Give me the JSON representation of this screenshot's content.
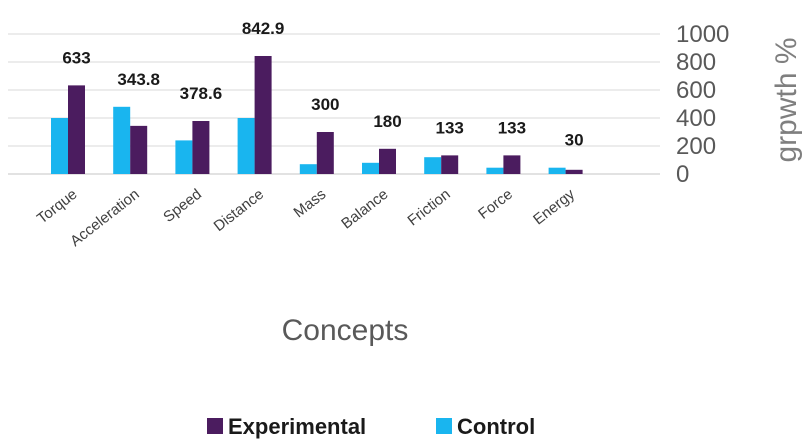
{
  "chart_data": {
    "type": "bar",
    "categories": [
      "Torque",
      "Acceleration",
      "Speed",
      "Distance",
      "Mass",
      "Balance",
      "Friction",
      "Force",
      "Energy"
    ],
    "series": [
      {
        "name": "Control",
        "color": "#19b5ef",
        "values": [
          400,
          480,
          240,
          400,
          70,
          80,
          120,
          45,
          45
        ]
      },
      {
        "name": "Experimental",
        "color": "#4b1c5f",
        "values": [
          633,
          343.8,
          378.6,
          842.9,
          300,
          180,
          133,
          133,
          30
        ]
      }
    ],
    "data_labels": [
      "633",
      "343.8",
      "378.6",
      "842.9",
      "300",
      "180",
      "133",
      "133",
      "30"
    ],
    "yticks": [
      "0",
      "200",
      "400",
      "600",
      "800",
      "1000"
    ],
    "ylim": [
      0,
      1000
    ],
    "xlabel": "Concepts",
    "ylabel": "grpwth %",
    "legend": [
      "Experimental",
      "Control"
    ],
    "legend_position": "bottom",
    "grid": true,
    "y_axis_side": "right"
  }
}
